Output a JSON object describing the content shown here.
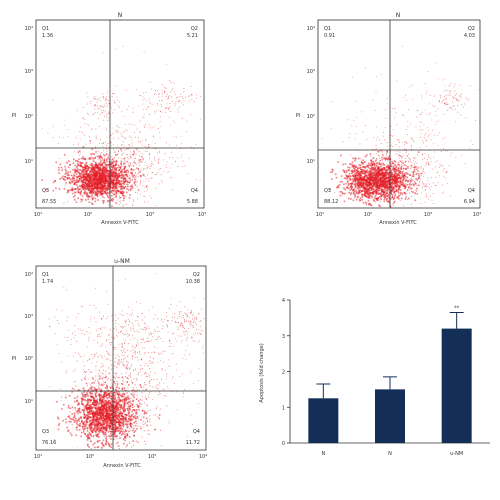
{
  "colors": {
    "dots": "#e41e26",
    "bars": "#132e57",
    "axis": "#333333"
  },
  "panels": [
    {
      "title": "N",
      "xlabel": "Annexin V-FITC",
      "ylabel": "PI",
      "x_ticks": [
        "10¹",
        "10²",
        "10³",
        "10⁴"
      ],
      "y_ticks": [
        "10⁴",
        "10³",
        "10²",
        "10¹"
      ],
      "quadrants": {
        "q1": "Q1",
        "q2": "Q2",
        "q3": "Q3",
        "q4": "Q4",
        "v1": "1.36",
        "v2": "5.21",
        "v3": "87.55",
        "v4": "5.88"
      }
    },
    {
      "title": "N",
      "xlabel": "Annexin V-FITC",
      "ylabel": "PI",
      "x_ticks": [
        "10¹",
        "10²",
        "10³",
        "10⁴"
      ],
      "y_ticks": [
        "10⁴",
        "10³",
        "10²",
        "10¹"
      ],
      "quadrants": {
        "q1": "Q1",
        "q2": "Q2",
        "q3": "Q3",
        "q4": "Q4",
        "v1": "0.91",
        "v2": "4.03",
        "v3": "88.12",
        "v4": "6.94"
      }
    },
    {
      "title": "u-NM",
      "xlabel": "Annexin V-FITC",
      "ylabel": "PI",
      "x_ticks": [
        "10¹",
        "10²",
        "10³",
        "10⁴"
      ],
      "y_ticks": [
        "10⁴",
        "10³",
        "10²",
        "10¹"
      ],
      "quadrants": {
        "q1": "Q1",
        "q2": "Q2",
        "q3": "Q3",
        "q4": "Q4",
        "v1": "1.74",
        "v2": "10.38",
        "v3": "76.16",
        "v4": "11.72"
      }
    }
  ],
  "chart_data": {
    "type": "bar",
    "categories": [
      "N",
      "N",
      "u-NM"
    ],
    "values": [
      1.25,
      1.5,
      3.2
    ],
    "errors": [
      0.4,
      0.35,
      0.45
    ],
    "ylim": [
      0,
      4
    ],
    "y_ticks": [
      "0",
      "1",
      "2",
      "3",
      "4"
    ],
    "ylabel": "Apoptosis (fold change)",
    "annotation": "**"
  }
}
